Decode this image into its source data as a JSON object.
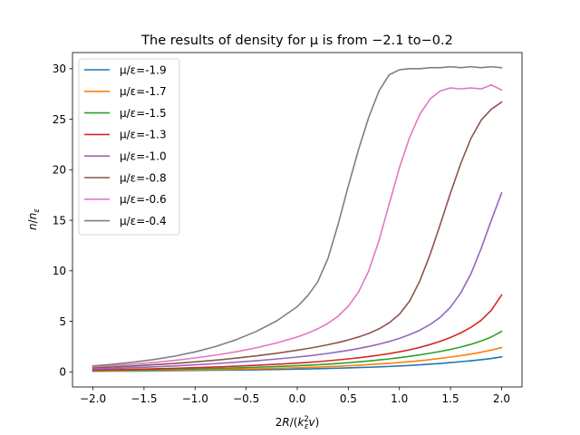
{
  "chart_data": {
    "type": "line",
    "title": "The results of density for μ is from −2.1 to−0.2",
    "xlabel": "2R/(k²_ε v)",
    "ylabel": "n/n_ε",
    "xlim": [
      -2.2,
      2.2
    ],
    "ylim": [
      -1.5,
      31.6
    ],
    "xticks": [
      -2.0,
      -1.5,
      -1.0,
      -0.5,
      0.0,
      0.5,
      1.0,
      1.5,
      2.0
    ],
    "xtick_labels": [
      "−2.0",
      "−1.5",
      "−1.0",
      "−0.5",
      "0.0",
      "0.5",
      "1.0",
      "1.5",
      "2.0"
    ],
    "yticks": [
      0,
      5,
      10,
      15,
      20,
      25,
      30
    ],
    "ytick_labels": [
      "0",
      "5",
      "10",
      "15",
      "20",
      "25",
      "30"
    ],
    "grid": false,
    "legend": "upper-left",
    "x": [
      -2.0,
      -1.8,
      -1.6,
      -1.4,
      -1.2,
      -1.0,
      -0.8,
      -0.6,
      -0.4,
      -0.2,
      0.0,
      0.1,
      0.2,
      0.3,
      0.4,
      0.5,
      0.6,
      0.7,
      0.8,
      0.9,
      1.0,
      1.1,
      1.2,
      1.3,
      1.4,
      1.5,
      1.6,
      1.7,
      1.8,
      1.9,
      2.0
    ],
    "series": [
      {
        "name": "μ/ε=-1.9",
        "color": "#1f77b4",
        "values": [
          0.05,
          0.07,
          0.08,
          0.1,
          0.12,
          0.14,
          0.16,
          0.18,
          0.2,
          0.23,
          0.27,
          0.29,
          0.31,
          0.33,
          0.36,
          0.39,
          0.42,
          0.45,
          0.49,
          0.53,
          0.58,
          0.63,
          0.69,
          0.76,
          0.83,
          0.92,
          1.0,
          1.1,
          1.2,
          1.32,
          1.48
        ]
      },
      {
        "name": "μ/ε=-1.7",
        "color": "#ff7f0e",
        "values": [
          0.08,
          0.1,
          0.12,
          0.14,
          0.17,
          0.2,
          0.23,
          0.26,
          0.3,
          0.35,
          0.4,
          0.43,
          0.47,
          0.51,
          0.55,
          0.6,
          0.65,
          0.71,
          0.77,
          0.84,
          0.92,
          1.01,
          1.1,
          1.21,
          1.33,
          1.46,
          1.6,
          1.76,
          1.94,
          2.15,
          2.4
        ]
      },
      {
        "name": "μ/ε=-1.5",
        "color": "#2ca02c",
        "values": [
          0.12,
          0.15,
          0.18,
          0.21,
          0.25,
          0.29,
          0.34,
          0.39,
          0.45,
          0.52,
          0.6,
          0.65,
          0.7,
          0.76,
          0.83,
          0.9,
          0.98,
          1.07,
          1.17,
          1.28,
          1.4,
          1.53,
          1.68,
          1.84,
          2.02,
          2.22,
          2.45,
          2.72,
          3.05,
          3.45,
          4.0
        ]
      },
      {
        "name": "μ/ε=-1.3",
        "color": "#d62728",
        "values": [
          0.17,
          0.21,
          0.25,
          0.3,
          0.35,
          0.41,
          0.48,
          0.56,
          0.65,
          0.75,
          0.86,
          0.93,
          1.0,
          1.09,
          1.18,
          1.28,
          1.39,
          1.51,
          1.65,
          1.8,
          1.98,
          2.18,
          2.42,
          2.7,
          3.02,
          3.4,
          3.85,
          4.4,
          5.1,
          6.1,
          7.6
        ]
      },
      {
        "name": "μ/ε=-1.0",
        "color": "#9467bd",
        "values": [
          0.28,
          0.34,
          0.41,
          0.49,
          0.58,
          0.69,
          0.81,
          0.95,
          1.1,
          1.27,
          1.46,
          1.57,
          1.69,
          1.82,
          1.97,
          2.13,
          2.31,
          2.51,
          2.74,
          3.0,
          3.31,
          3.68,
          4.12,
          4.68,
          5.4,
          6.4,
          7.8,
          9.7,
          12.2,
          15.0,
          17.7
        ]
      },
      {
        "name": "μ/ε=-0.8",
        "color": "#8c564b",
        "values": [
          0.4,
          0.48,
          0.58,
          0.7,
          0.83,
          0.98,
          1.15,
          1.35,
          1.58,
          1.84,
          2.14,
          2.3,
          2.48,
          2.68,
          2.9,
          3.15,
          3.45,
          3.8,
          4.25,
          4.85,
          5.7,
          7.0,
          9.0,
          11.6,
          14.6,
          17.7,
          20.6,
          23.1,
          24.9,
          26.0,
          26.7
        ]
      },
      {
        "name": "μ/ε=-0.6",
        "color": "#e377c2",
        "values": [
          0.5,
          0.62,
          0.76,
          0.93,
          1.13,
          1.37,
          1.65,
          1.98,
          2.38,
          2.86,
          3.45,
          3.82,
          4.25,
          4.8,
          5.5,
          6.5,
          7.9,
          10.0,
          13.0,
          16.6,
          20.2,
          23.2,
          25.5,
          27.0,
          27.8,
          28.1,
          28.0,
          28.1,
          28.0,
          28.4,
          27.9
        ]
      },
      {
        "name": "μ/ε=-0.4",
        "color": "#7f7f7f",
        "values": [
          0.58,
          0.75,
          0.96,
          1.22,
          1.55,
          1.97,
          2.5,
          3.17,
          4.0,
          5.05,
          6.45,
          7.5,
          8.9,
          11.2,
          14.6,
          18.4,
          22.0,
          25.2,
          27.8,
          29.4,
          29.9,
          30.0,
          30.0,
          30.1,
          30.1,
          30.2,
          30.1,
          30.2,
          30.1,
          30.2,
          30.1
        ]
      }
    ]
  }
}
